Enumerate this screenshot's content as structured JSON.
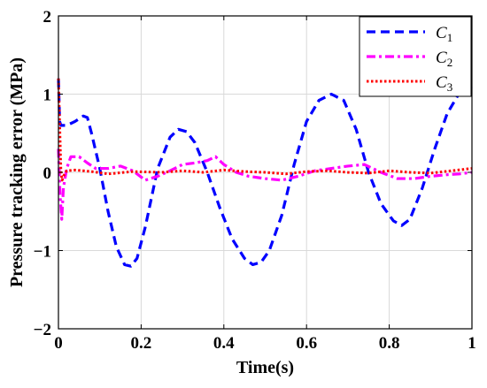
{
  "chart_data": {
    "type": "line",
    "xlabel": "Time(s)",
    "ylabel": "Pressure tracking error (MPa)",
    "xlim": [
      0,
      1
    ],
    "ylim": [
      -2,
      2
    ],
    "xticks": [
      0,
      0.2,
      0.4,
      0.6,
      0.8,
      1
    ],
    "xtick_labels": [
      "0",
      "0.2",
      "0.4",
      "0.6",
      "0.8",
      "1"
    ],
    "yticks": [
      -2,
      -1,
      0,
      1,
      2
    ],
    "ytick_labels": [
      "−2",
      "−1",
      "0",
      "1",
      "2"
    ],
    "grid": true,
    "legend_position": "top-right",
    "series": [
      {
        "name": "C1",
        "legend_main": "C",
        "legend_sub": "1",
        "color": "#0000ff",
        "style": "dashed",
        "x": [
          0,
          0.003,
          0.006,
          0.01,
          0.02,
          0.04,
          0.06,
          0.07,
          0.08,
          0.1,
          0.12,
          0.14,
          0.16,
          0.175,
          0.19,
          0.21,
          0.24,
          0.27,
          0.29,
          0.31,
          0.33,
          0.36,
          0.39,
          0.42,
          0.45,
          0.47,
          0.49,
          0.51,
          0.54,
          0.57,
          0.6,
          0.63,
          0.66,
          0.69,
          0.72,
          0.75,
          0.78,
          0.81,
          0.83,
          0.85,
          0.88,
          0.91,
          0.94,
          0.97,
          1.0
        ],
        "y": [
          1.2,
          0.65,
          0.6,
          0.6,
          0.6,
          0.65,
          0.72,
          0.7,
          0.5,
          0.05,
          -0.5,
          -0.95,
          -1.18,
          -1.2,
          -1.1,
          -0.7,
          0.05,
          0.45,
          0.55,
          0.52,
          0.38,
          0.0,
          -0.45,
          -0.85,
          -1.1,
          -1.18,
          -1.15,
          -1.0,
          -0.55,
          0.1,
          0.65,
          0.92,
          1.0,
          0.92,
          0.55,
          0.0,
          -0.4,
          -0.62,
          -0.68,
          -0.6,
          -0.2,
          0.3,
          0.75,
          1.02,
          1.1
        ]
      },
      {
        "name": "C2",
        "legend_main": "C",
        "legend_sub": "2",
        "color": "#ff00ff",
        "style": "dashdot",
        "x": [
          0,
          0.004,
          0.008,
          0.012,
          0.02,
          0.03,
          0.05,
          0.07,
          0.09,
          0.12,
          0.15,
          0.18,
          0.21,
          0.24,
          0.27,
          0.3,
          0.33,
          0.36,
          0.38,
          0.4,
          0.43,
          0.46,
          0.5,
          0.54,
          0.58,
          0.62,
          0.66,
          0.7,
          0.74,
          0.78,
          0.82,
          0.86,
          0.9,
          0.94,
          0.97,
          1.0
        ],
        "y": [
          0.3,
          -0.3,
          -0.6,
          -0.2,
          0.05,
          0.2,
          0.2,
          0.12,
          0.05,
          0.05,
          0.08,
          0.02,
          -0.1,
          -0.05,
          0.02,
          0.1,
          0.12,
          0.15,
          0.2,
          0.1,
          0.0,
          -0.05,
          -0.08,
          -0.1,
          -0.05,
          0.02,
          0.05,
          0.08,
          0.1,
          0.0,
          -0.08,
          -0.08,
          -0.05,
          -0.03,
          -0.02,
          0.0
        ]
      },
      {
        "name": "C3",
        "legend_main": "C",
        "legend_sub": "3",
        "color": "#ff0000",
        "style": "dotted",
        "x": [
          0,
          0.003,
          0.006,
          0.009,
          0.012,
          0.02,
          0.04,
          0.08,
          0.12,
          0.18,
          0.25,
          0.3,
          0.35,
          0.4,
          0.45,
          0.5,
          0.55,
          0.6,
          0.65,
          0.7,
          0.75,
          0.8,
          0.85,
          0.9,
          0.95,
          1.0
        ],
        "y": [
          1.2,
          0.6,
          0.0,
          -0.1,
          -0.05,
          0.02,
          0.03,
          0.01,
          -0.02,
          0.01,
          0.0,
          0.02,
          0.0,
          0.03,
          0.01,
          0.0,
          -0.02,
          0.01,
          0.02,
          0.0,
          -0.01,
          0.02,
          0.0,
          -0.01,
          0.02,
          0.05
        ]
      }
    ]
  }
}
